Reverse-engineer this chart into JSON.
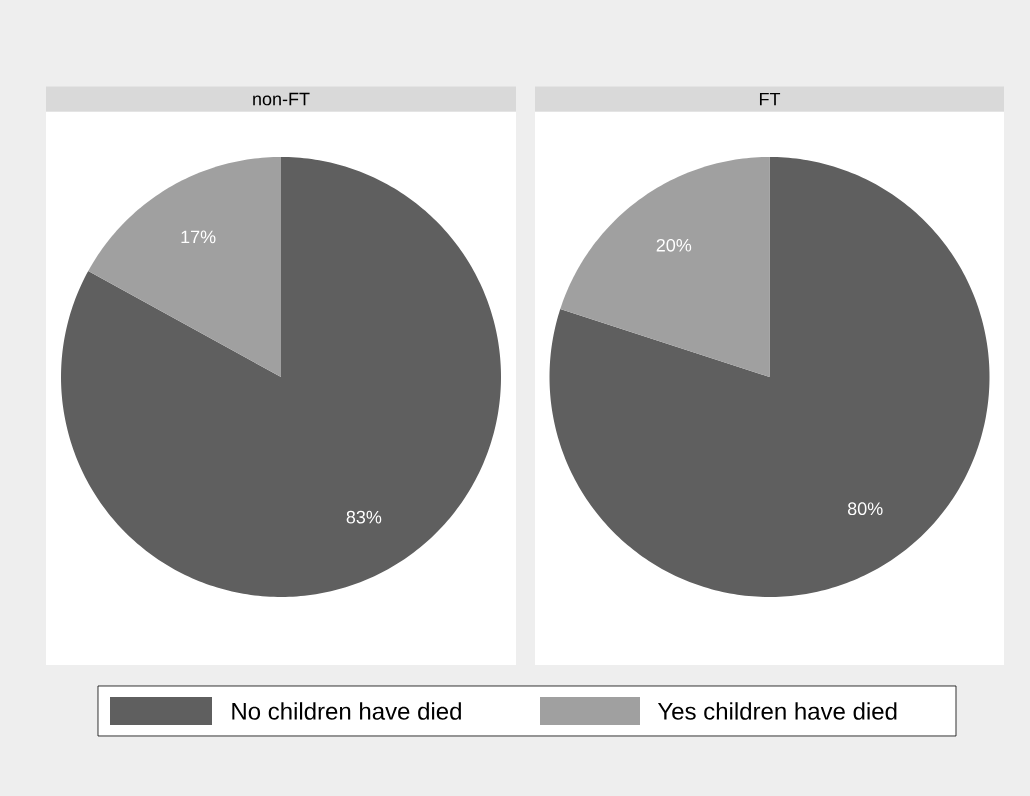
{
  "chart_data": {
    "type": "pie",
    "categories": [
      "No children have died",
      "Yes children have died"
    ],
    "colors": [
      "#5f5f5f",
      "#a0a0a0"
    ],
    "legend": "bottom",
    "series": [
      {
        "name": "non-FT",
        "values": [
          83,
          17
        ],
        "value_labels": [
          "83%",
          "17%"
        ]
      },
      {
        "name": "FT",
        "values": [
          80,
          20
        ],
        "value_labels": [
          "80%",
          "20%"
        ]
      }
    ]
  }
}
